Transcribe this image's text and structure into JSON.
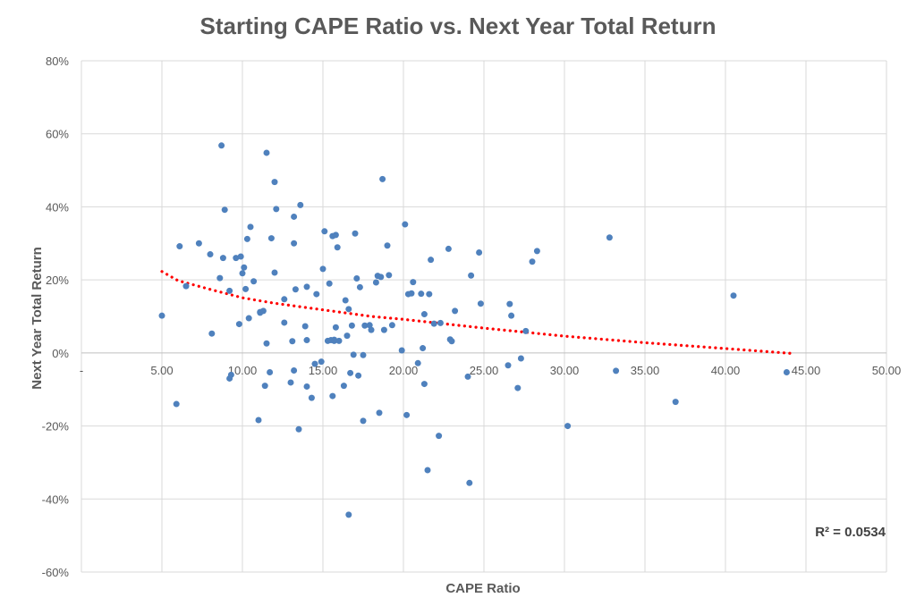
{
  "chart_data": {
    "type": "scatter",
    "title": "Starting CAPE Ratio vs. Next Year Total Return",
    "xlabel": "CAPE Ratio",
    "ylabel": "Next Year  Total Return",
    "xlim": [
      0,
      50
    ],
    "ylim": [
      -60,
      80
    ],
    "x_tick_labels": [
      "5.00",
      "10.00",
      "15.00",
      "20.00",
      "25.00",
      "30.00",
      "35.00",
      "40.00",
      "45.00",
      "50.00"
    ],
    "x_tick_values": [
      5,
      10,
      15,
      20,
      25,
      30,
      35,
      40,
      45,
      50
    ],
    "x_zero_label": "-",
    "y_tick_labels": [
      "80%",
      "60%",
      "40%",
      "20%",
      "0%",
      "-20%",
      "-40%",
      "-60%"
    ],
    "y_tick_values": [
      80,
      60,
      40,
      20,
      0,
      -20,
      -40,
      -60
    ],
    "grid": true,
    "legend": "none",
    "annotation": "R² = 0.0534",
    "colors": {
      "points": "#4f81bd",
      "trendline": "#ff0000"
    },
    "trendline": {
      "type": "power",
      "style": "dotted",
      "x": [
        5,
        6,
        8,
        10,
        12,
        15,
        18,
        20,
        25,
        30,
        35,
        40,
        44
      ],
      "y": [
        22.3,
        19.8,
        17.4,
        15.1,
        13.6,
        11.8,
        10.0,
        9.2,
        6.8,
        4.6,
        2.8,
        1.2,
        -0.1
      ]
    },
    "series": [
      {
        "x": [
          5.0,
          5.9,
          6.1,
          6.5,
          7.3,
          8.0,
          8.1,
          8.6,
          8.7,
          8.8,
          8.9,
          9.2,
          9.2,
          9.3,
          9.6,
          9.8,
          9.9,
          10.0,
          10.1,
          10.2,
          10.3,
          10.4,
          10.5,
          10.7,
          11.0,
          11.1,
          11.1,
          11.3,
          11.4,
          11.5,
          11.5,
          11.7,
          11.8,
          12.0,
          12.0,
          12.1,
          12.6,
          12.6,
          13.0,
          13.1,
          13.2,
          13.2,
          13.2,
          13.3,
          13.5,
          13.6,
          13.9,
          14.0,
          14.0,
          14.0,
          14.3,
          14.5,
          14.6,
          14.9,
          15.0,
          15.1,
          15.3,
          15.4,
          15.5,
          15.6,
          15.6,
          15.7,
          15.7,
          15.8,
          15.8,
          15.9,
          16.0,
          16.3,
          16.4,
          16.5,
          16.6,
          16.6,
          16.7,
          16.8,
          16.9,
          17.0,
          17.1,
          17.2,
          17.3,
          17.5,
          17.5,
          17.6,
          17.9,
          18.0,
          18.3,
          18.4,
          18.5,
          18.6,
          18.7,
          18.8,
          19.0,
          19.1,
          19.3,
          19.9,
          20.1,
          20.2,
          20.3,
          20.5,
          20.6,
          20.9,
          21.1,
          21.2,
          21.3,
          21.3,
          21.5,
          21.6,
          21.7,
          21.9,
          22.2,
          22.3,
          22.8,
          22.9,
          23.0,
          23.2,
          24.0,
          24.1,
          24.2,
          24.7,
          24.8,
          26.5,
          26.6,
          26.7,
          27.1,
          27.3,
          27.6,
          28.0,
          28.3,
          30.2,
          32.8,
          33.2,
          36.9,
          40.5,
          43.8
        ],
        "y": [
          10.2,
          -14.0,
          29.2,
          18.3,
          30.0,
          27.0,
          5.3,
          20.5,
          56.8,
          26.0,
          39.2,
          17.0,
          -7.0,
          -6.0,
          26.0,
          7.9,
          26.4,
          21.8,
          23.4,
          17.5,
          31.2,
          9.5,
          34.5,
          19.6,
          -18.4,
          11.0,
          11.2,
          11.5,
          -9.0,
          2.6,
          54.8,
          -5.3,
          31.4,
          46.8,
          22.0,
          39.4,
          14.7,
          8.3,
          -8.1,
          3.2,
          30.0,
          -4.8,
          37.3,
          17.4,
          -20.9,
          40.5,
          7.3,
          18.1,
          -9.2,
          3.5,
          -12.3,
          -3.0,
          16.1,
          -2.4,
          23.0,
          33.3,
          3.3,
          19.0,
          3.5,
          32.0,
          -11.8,
          3.3,
          3.6,
          7.0,
          32.3,
          28.9,
          3.3,
          -9.0,
          14.4,
          4.7,
          12.0,
          -44.3,
          -5.5,
          7.5,
          -0.5,
          32.7,
          20.4,
          -6.2,
          18.0,
          -18.6,
          -0.6,
          7.5,
          7.6,
          6.3,
          19.3,
          21.1,
          -16.4,
          20.8,
          47.6,
          6.3,
          29.4,
          21.3,
          7.6,
          0.7,
          35.2,
          -17.0,
          16.1,
          16.3,
          19.4,
          -2.8,
          16.2,
          1.3,
          -8.5,
          10.6,
          -32.1,
          16.1,
          25.5,
          8.0,
          -22.7,
          8.2,
          28.5,
          3.7,
          3.2,
          11.5,
          -6.5,
          -35.6,
          21.2,
          27.5,
          13.5,
          -3.4,
          13.4,
          10.2,
          -9.6,
          -1.5,
          6.0,
          25.0,
          27.9,
          -20.0,
          31.6,
          -4.9,
          -13.4,
          15.7,
          -5.3
        ]
      }
    ]
  }
}
